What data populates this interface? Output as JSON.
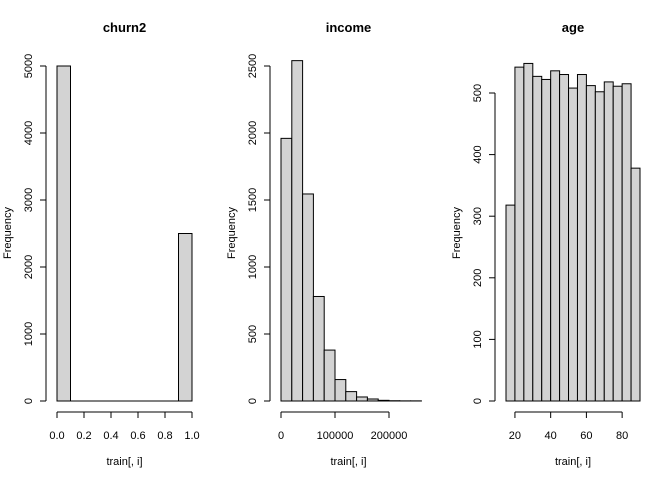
{
  "chart_data": [
    {
      "type": "bar",
      "title": "churn2",
      "xlabel": "train[, i]",
      "ylabel": "Frequency",
      "xlim": [
        0,
        1
      ],
      "ylim": [
        0,
        5000
      ],
      "x_ticks": [
        0,
        0.2,
        0.4,
        0.6,
        0.8,
        1
      ],
      "x_tick_labels": [
        "0.0",
        "0.2",
        "0.4",
        "0.6",
        "0.8",
        "1.0"
      ],
      "y_ticks": [
        0,
        1000,
        2000,
        3000,
        4000,
        5000
      ],
      "y_tick_labels": [
        "0",
        "1000",
        "2000",
        "3000",
        "4000",
        "5000"
      ],
      "bins": [
        {
          "x0": 0,
          "x1": 0.1,
          "value": 5000
        },
        {
          "x0": 0.1,
          "x1": 0.2,
          "value": 0
        },
        {
          "x0": 0.2,
          "x1": 0.3,
          "value": 0
        },
        {
          "x0": 0.3,
          "x1": 0.4,
          "value": 0
        },
        {
          "x0": 0.4,
          "x1": 0.5,
          "value": 0
        },
        {
          "x0": 0.5,
          "x1": 0.6,
          "value": 0
        },
        {
          "x0": 0.6,
          "x1": 0.7,
          "value": 0
        },
        {
          "x0": 0.7,
          "x1": 0.8,
          "value": 0
        },
        {
          "x0": 0.8,
          "x1": 0.9,
          "value": 0
        },
        {
          "x0": 0.9,
          "x1": 1.0,
          "value": 2500
        }
      ]
    },
    {
      "type": "bar",
      "title": "income",
      "xlabel": "train[, i]",
      "ylabel": "Frequency",
      "xlim": [
        0,
        250000
      ],
      "ylim": [
        0,
        2500
      ],
      "x_ticks": [
        0,
        100000,
        200000
      ],
      "x_tick_labels": [
        "0",
        "100000",
        "200000"
      ],
      "y_ticks": [
        0,
        500,
        1000,
        1500,
        2000,
        2500
      ],
      "y_tick_labels": [
        "0",
        "500",
        "1000",
        "1500",
        "2000",
        "2500"
      ],
      "bins": [
        {
          "x0": 0,
          "x1": 20000,
          "value": 1960
        },
        {
          "x0": 20000,
          "x1": 40000,
          "value": 2540
        },
        {
          "x0": 40000,
          "x1": 60000,
          "value": 1545
        },
        {
          "x0": 60000,
          "x1": 80000,
          "value": 780
        },
        {
          "x0": 80000,
          "x1": 100000,
          "value": 380
        },
        {
          "x0": 100000,
          "x1": 120000,
          "value": 160
        },
        {
          "x0": 120000,
          "x1": 140000,
          "value": 70
        },
        {
          "x0": 140000,
          "x1": 160000,
          "value": 30
        },
        {
          "x0": 160000,
          "x1": 180000,
          "value": 15
        },
        {
          "x0": 180000,
          "x1": 200000,
          "value": 5
        },
        {
          "x0": 200000,
          "x1": 220000,
          "value": 2
        },
        {
          "x0": 220000,
          "x1": 240000,
          "value": 1
        },
        {
          "x0": 240000,
          "x1": 260000,
          "value": 1
        }
      ]
    },
    {
      "type": "bar",
      "title": "age",
      "xlabel": "train[, i]",
      "ylabel": "Frequency",
      "xlim": [
        15,
        90
      ],
      "ylim": [
        0,
        500
      ],
      "x_ticks": [
        20,
        40,
        60,
        80
      ],
      "x_tick_labels": [
        "20",
        "40",
        "60",
        "80"
      ],
      "y_ticks": [
        0,
        100,
        200,
        300,
        400,
        500
      ],
      "y_tick_labels": [
        "0",
        "100",
        "200",
        "300",
        "400",
        "500"
      ],
      "bins": [
        {
          "x0": 15,
          "x1": 20,
          "value": 318
        },
        {
          "x0": 20,
          "x1": 25,
          "value": 542
        },
        {
          "x0": 25,
          "x1": 30,
          "value": 548
        },
        {
          "x0": 30,
          "x1": 35,
          "value": 527
        },
        {
          "x0": 35,
          "x1": 40,
          "value": 522
        },
        {
          "x0": 40,
          "x1": 45,
          "value": 536
        },
        {
          "x0": 45,
          "x1": 50,
          "value": 530
        },
        {
          "x0": 50,
          "x1": 55,
          "value": 508
        },
        {
          "x0": 55,
          "x1": 60,
          "value": 530
        },
        {
          "x0": 60,
          "x1": 65,
          "value": 512
        },
        {
          "x0": 65,
          "x1": 70,
          "value": 502
        },
        {
          "x0": 70,
          "x1": 75,
          "value": 518
        },
        {
          "x0": 75,
          "x1": 80,
          "value": 511
        },
        {
          "x0": 80,
          "x1": 85,
          "value": 515
        },
        {
          "x0": 85,
          "x1": 90,
          "value": 378
        }
      ]
    }
  ]
}
